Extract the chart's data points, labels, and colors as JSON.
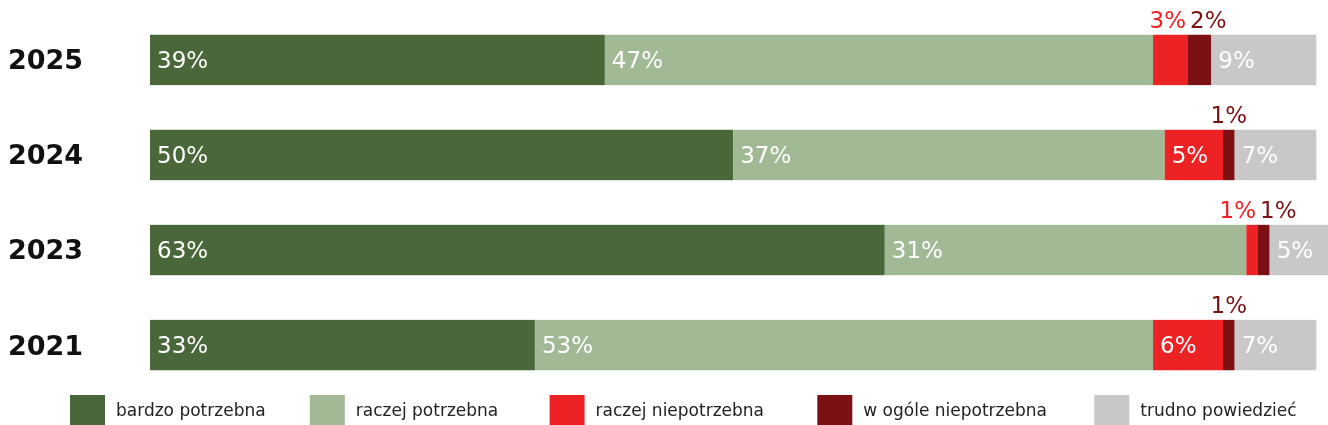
{
  "chart_data": {
    "type": "bar",
    "orientation": "horizontal",
    "stacked": true,
    "legend": "bottom",
    "categories": [
      "2025",
      "2024",
      "2023",
      "2021"
    ],
    "series": [
      {
        "name": "bardzo potrzebna",
        "color": "#4a6739",
        "values": [
          39,
          50,
          63,
          33
        ],
        "value_labels": [
          "39%",
          "50%",
          "63%",
          "33%"
        ]
      },
      {
        "name": "raczej potrzebna",
        "color": "#a1b995",
        "values": [
          47,
          37,
          31,
          53
        ],
        "value_labels": [
          "47%",
          "37%",
          "31%",
          "53%"
        ]
      },
      {
        "name": "raczej niepotrzebna",
        "color": "#ed2224",
        "values": [
          3,
          5,
          1,
          6
        ],
        "value_labels": [
          "3%",
          "5%",
          "1%",
          "6%"
        ]
      },
      {
        "name": "w ogóle niepotrzebna",
        "color": "#7b1113",
        "values": [
          2,
          1,
          1,
          1
        ],
        "value_labels": [
          "2%",
          "1%",
          "1%",
          "1%"
        ]
      },
      {
        "name": "trudno powiedzieć",
        "color": "#c8c8c8",
        "values": [
          9,
          7,
          5,
          7
        ],
        "value_labels": [
          "9%",
          "7%",
          "5%",
          "7%"
        ]
      }
    ]
  }
}
